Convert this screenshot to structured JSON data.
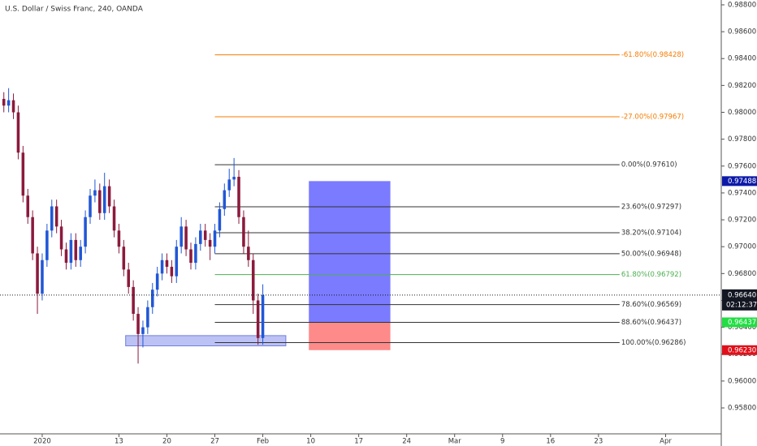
{
  "chart_data": {
    "type": "candlestick",
    "title": "U.S. Dollar / Swiss Franc, 240, OANDA",
    "x": [
      -4,
      -3.5,
      -3,
      -2.5,
      -2,
      -1.5,
      -1,
      -0.5,
      0,
      0.5,
      1,
      1.5,
      2,
      2.5,
      3,
      3.5,
      4,
      4.5,
      5,
      5.5,
      6,
      6.5,
      7,
      7.5,
      8,
      8.5,
      9,
      9.5,
      10,
      10.5,
      11,
      11.5,
      12,
      12.5,
      13,
      13.5,
      14,
      14.5,
      15,
      15.5,
      16,
      16.5,
      17,
      17.5,
      18,
      18.5,
      19,
      19.5,
      20,
      20.5,
      21,
      21.5,
      22,
      22.5,
      23
    ],
    "ohlc": {
      "open": [
        0.981,
        0.9805,
        0.9809,
        0.98,
        0.977,
        0.9738,
        0.9722,
        0.9695,
        0.9665,
        0.969,
        0.9712,
        0.973,
        0.9715,
        0.9698,
        0.9688,
        0.9705,
        0.969,
        0.97,
        0.9722,
        0.9738,
        0.9742,
        0.9725,
        0.9745,
        0.973,
        0.9712,
        0.97,
        0.9683,
        0.967,
        0.965,
        0.9635,
        0.964,
        0.9655,
        0.9668,
        0.968,
        0.969,
        0.9685,
        0.9678,
        0.97,
        0.9715,
        0.9698,
        0.9688,
        0.9702,
        0.9712,
        0.9705,
        0.97,
        0.9712,
        0.9728,
        0.9742,
        0.975,
        0.9752,
        0.9722,
        0.97,
        0.969,
        0.966,
        0.9632
      ],
      "high": [
        0.9815,
        0.9818,
        0.9814,
        0.9805,
        0.9775,
        0.9743,
        0.9727,
        0.97,
        0.9695,
        0.9717,
        0.9735,
        0.9735,
        0.972,
        0.9703,
        0.971,
        0.971,
        0.9705,
        0.9727,
        0.9743,
        0.975,
        0.9747,
        0.9755,
        0.975,
        0.9735,
        0.9717,
        0.9705,
        0.9688,
        0.9675,
        0.9655,
        0.9645,
        0.966,
        0.9673,
        0.9685,
        0.9695,
        0.9695,
        0.969,
        0.9705,
        0.9722,
        0.972,
        0.9703,
        0.9707,
        0.9717,
        0.9717,
        0.971,
        0.9717,
        0.9733,
        0.9747,
        0.9758,
        0.9766,
        0.9757,
        0.9727,
        0.9712,
        0.9695,
        0.9665,
        0.9672
      ],
      "low": [
        0.98,
        0.98,
        0.9795,
        0.9765,
        0.9733,
        0.9717,
        0.969,
        0.965,
        0.966,
        0.9685,
        0.9707,
        0.971,
        0.9693,
        0.9683,
        0.9683,
        0.9685,
        0.9685,
        0.9695,
        0.9717,
        0.9733,
        0.972,
        0.972,
        0.9725,
        0.9707,
        0.9695,
        0.9678,
        0.9665,
        0.9645,
        0.9613,
        0.9625,
        0.9635,
        0.965,
        0.9663,
        0.9675,
        0.968,
        0.9673,
        0.9673,
        0.9695,
        0.9693,
        0.9683,
        0.9683,
        0.9697,
        0.97,
        0.969,
        0.9695,
        0.9707,
        0.9723,
        0.9737,
        0.9745,
        0.9717,
        0.9695,
        0.9685,
        0.965,
        0.9627,
        0.9627
      ],
      "close": [
        0.9805,
        0.9809,
        0.98,
        0.977,
        0.9738,
        0.9722,
        0.9695,
        0.9665,
        0.969,
        0.9712,
        0.973,
        0.9715,
        0.9698,
        0.9688,
        0.9705,
        0.969,
        0.97,
        0.9722,
        0.9738,
        0.9742,
        0.9725,
        0.9745,
        0.973,
        0.9712,
        0.97,
        0.9683,
        0.967,
        0.965,
        0.9635,
        0.964,
        0.9655,
        0.9668,
        0.968,
        0.969,
        0.9685,
        0.9678,
        0.97,
        0.9715,
        0.9698,
        0.9688,
        0.9702,
        0.9712,
        0.9705,
        0.97,
        0.9712,
        0.9728,
        0.9742,
        0.975,
        0.9752,
        0.9722,
        0.97,
        0.969,
        0.966,
        0.9632,
        0.9664
      ]
    },
    "up_color": "#2157d6",
    "down_color": "#8b1a3c",
    "xlim": [
      -4.4,
      70.8
    ],
    "xticks": [
      {
        "value": 0,
        "label": "2020"
      },
      {
        "value": 8,
        "label": "13"
      },
      {
        "value": 13,
        "label": "20"
      },
      {
        "value": 18,
        "label": "27"
      },
      {
        "value": 23,
        "label": "Feb"
      },
      {
        "value": 28,
        "label": "10"
      },
      {
        "value": 33,
        "label": "17"
      },
      {
        "value": 38,
        "label": "24"
      },
      {
        "value": 43,
        "label": "Mar"
      },
      {
        "value": 48,
        "label": "9"
      },
      {
        "value": 53,
        "label": "16"
      },
      {
        "value": 58,
        "label": "23"
      },
      {
        "value": 65,
        "label": "Apr"
      }
    ],
    "ylim": [
      0.95607,
      0.98836
    ],
    "yticks": [
      {
        "value": 0.988,
        "label": "0.98800"
      },
      {
        "value": 0.986,
        "label": "0.98600"
      },
      {
        "value": 0.984,
        "label": "0.98400"
      },
      {
        "value": 0.982,
        "label": "0.98200"
      },
      {
        "value": 0.98,
        "label": "0.98000"
      },
      {
        "value": 0.978,
        "label": "0.97800"
      },
      {
        "value": 0.976,
        "label": "0.97600"
      },
      {
        "value": 0.974,
        "label": "0.97400"
      },
      {
        "value": 0.972,
        "label": "0.97200"
      },
      {
        "value": 0.97,
        "label": "0.97000"
      },
      {
        "value": 0.968,
        "label": "0.96800"
      },
      {
        "value": 0.966,
        "label": "0.96600"
      },
      {
        "value": 0.964,
        "label": "0.96400"
      },
      {
        "value": 0.962,
        "label": "0.96200"
      },
      {
        "value": 0.96,
        "label": "0.96000"
      },
      {
        "value": 0.958,
        "label": "0.95800"
      }
    ],
    "fib": {
      "x_start": 18,
      "x_end": 60.2,
      "levels": [
        {
          "value": 0.98428,
          "label": "-61.80%(0.98428)",
          "color": "#f57c00"
        },
        {
          "value": 0.97967,
          "label": "-27.00%(0.97967)",
          "color": "#f57c00"
        },
        {
          "value": 0.9761,
          "label": "0.00%(0.97610)",
          "color": "#333333"
        },
        {
          "value": 0.97297,
          "label": "23.60%(0.97297)",
          "color": "#333333"
        },
        {
          "value": 0.97104,
          "label": "38.20%(0.97104)",
          "color": "#333333"
        },
        {
          "value": 0.96948,
          "label": "50.00%(0.96948)",
          "color": "#333333"
        },
        {
          "value": 0.96792,
          "label": "61.80%(0.96792)",
          "color": "#4caf50"
        },
        {
          "value": 0.96569,
          "label": "78.60%(0.96569)",
          "color": "#333333"
        },
        {
          "value": 0.96437,
          "label": "88.60%(0.96437)",
          "color": "#333333"
        },
        {
          "value": 0.96286,
          "label": "100.00%(0.96286)",
          "color": "#333333"
        }
      ]
    },
    "zone": {
      "x_start": 8.7,
      "x_end": 25.4,
      "top": 0.9632,
      "bottom": 0.9628,
      "color": "#9fa8f0"
    },
    "position": {
      "x_start": 27.8,
      "x_end": 36.3,
      "target": 0.97488,
      "entry": 0.96437,
      "stop": 0.9623,
      "target_color": "#7b7bff",
      "stop_color": "#ff8a8a"
    },
    "last_price": {
      "value": 0.9664,
      "label": "0.96640",
      "countdown": "02:12:37",
      "color": "#131722"
    },
    "price_tags": [
      {
        "value": 0.97488,
        "label": "0.97488",
        "color": "#0d1aa8"
      },
      {
        "value": 0.96437,
        "label": "0.96437",
        "color": "#22dd44"
      },
      {
        "value": 0.9623,
        "label": "0.96230",
        "color": "#e0101a"
      }
    ]
  }
}
